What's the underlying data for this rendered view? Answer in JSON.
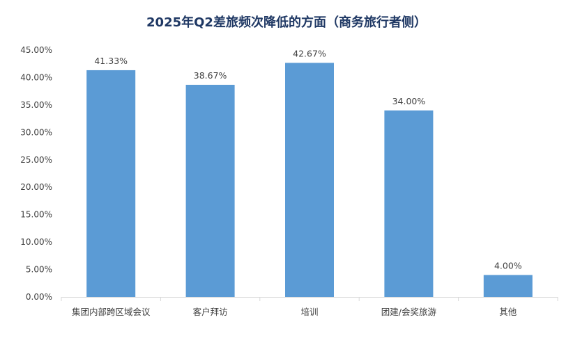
{
  "chart_data": {
    "type": "bar",
    "title": "2025年Q2差旅频次降低的方面（商务旅行者侧）",
    "categories": [
      "集团内部跨区域会议",
      "客户拜访",
      "培训",
      "团建/会奖旅游",
      "其他"
    ],
    "values": [
      41.33,
      38.67,
      42.67,
      34.0,
      4.0
    ],
    "data_labels": [
      "41.33%",
      "38.67%",
      "42.67%",
      "34.00%",
      "4.00%"
    ],
    "y_ticks": [
      "0.00%",
      "5.00%",
      "10.00%",
      "15.00%",
      "20.00%",
      "25.00%",
      "30.00%",
      "35.00%",
      "40.00%",
      "45.00%"
    ],
    "ylim": [
      0,
      45
    ],
    "xlabel": "",
    "ylabel": "",
    "grid": false,
    "legend": "none",
    "bar_color": "#5b9bd5"
  }
}
